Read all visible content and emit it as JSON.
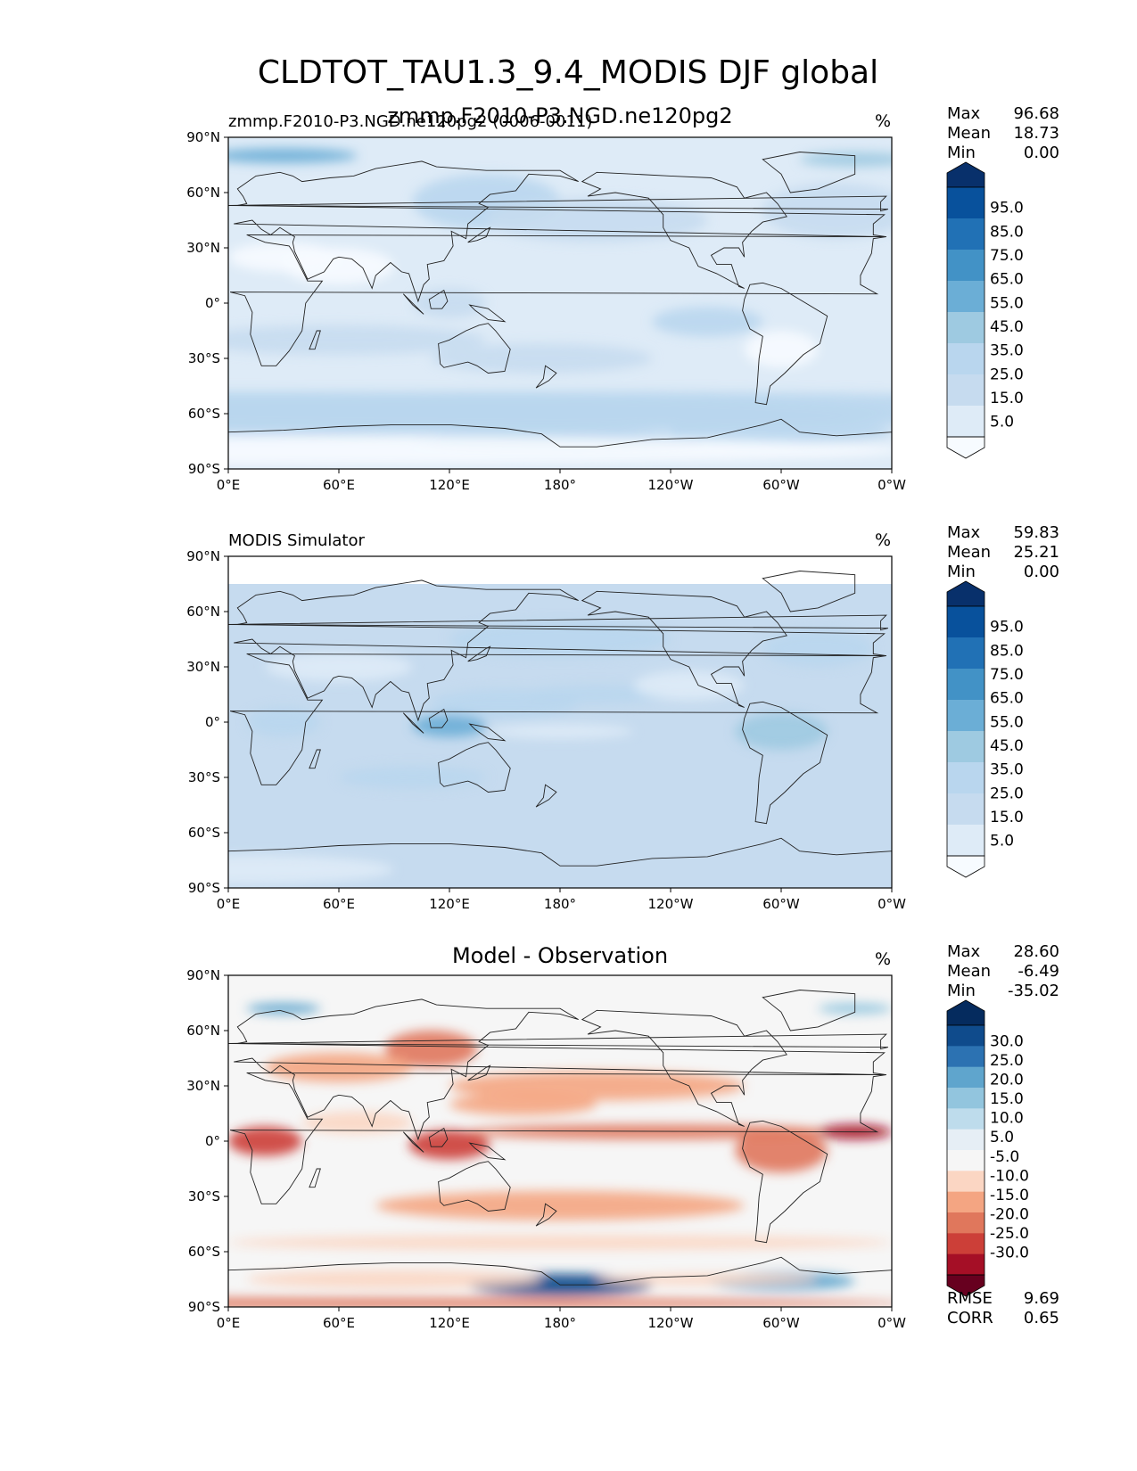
{
  "figure": {
    "title": "CLDTOT_TAU1.3_9.4_MODIS DJF global"
  },
  "axes": {
    "lat_ticks": [
      "90°N",
      "60°N",
      "30°N",
      "0°",
      "30°S",
      "60°S",
      "90°S"
    ],
    "lon_ticks": [
      "0°E",
      "60°E",
      "120°E",
      "180°",
      "120°W",
      "60°W",
      "0°W"
    ]
  },
  "panels": [
    {
      "left_label": "zmmp.F2010-P3.NGD.ne120pg2 (0006-0011)",
      "center_label": "zmmp.F2010-P3.NGD.ne120pg2",
      "unit": "%",
      "stats": {
        "max_label": "Max",
        "max": "96.68",
        "mean_label": "Mean",
        "mean": "18.73",
        "min_label": "Min",
        "min": "0.00"
      },
      "colorbar": {
        "labels": [
          "95.0",
          "85.0",
          "75.0",
          "65.0",
          "55.0",
          "45.0",
          "35.0",
          "25.0",
          "15.0",
          "5.0"
        ]
      }
    },
    {
      "left_label": "MODIS Simulator",
      "center_label": "",
      "unit": "%",
      "stats": {
        "max_label": "Max",
        "max": "59.83",
        "mean_label": "Mean",
        "mean": "25.21",
        "min_label": "Min",
        "min": "0.00"
      },
      "colorbar": {
        "labels": [
          "95.0",
          "85.0",
          "75.0",
          "65.0",
          "55.0",
          "45.0",
          "35.0",
          "25.0",
          "15.0",
          "5.0"
        ]
      }
    },
    {
      "left_label": "",
      "center_label": "Model - Observation",
      "unit": "%",
      "stats": {
        "max_label": "Max",
        "max": "28.60",
        "mean_label": "Mean",
        "mean": "-6.49",
        "min_label": "Min",
        "min": "-35.02"
      },
      "colorbar": {
        "labels": [
          "30.0",
          "25.0",
          "20.0",
          "15.0",
          "10.0",
          "5.0",
          "-5.0",
          "-10.0",
          "-15.0",
          "-20.0",
          "-25.0",
          "-30.0"
        ]
      },
      "metrics": {
        "rmse_label": "RMSE",
        "rmse": "9.69",
        "corr_label": "CORR",
        "corr": "0.65"
      }
    }
  ],
  "colors": {
    "blues": [
      "#f7fbff",
      "#deebf7",
      "#c6dbef",
      "#b9d6ee",
      "#9ecae1",
      "#6baed6",
      "#4292c6",
      "#2171b5",
      "#08519c",
      "#08306b"
    ],
    "diff": [
      "#67001f",
      "#a50f26",
      "#cc3f38",
      "#e0775c",
      "#f4a582",
      "#fbd6c3",
      "#f6f6f6",
      "#e6eef5",
      "#bedcec",
      "#92c5de",
      "#5fa5cd",
      "#2c72b2",
      "#0f4b8c",
      "#052b5e"
    ]
  },
  "chart_data": [
    {
      "type": "heatmap",
      "title": "zmmp.F2010-P3.NGD.ne120pg2",
      "unit": "%",
      "xlim": [
        0,
        360
      ],
      "ylim": [
        -90,
        90
      ],
      "stats": {
        "max": 96.68,
        "mean": 18.73,
        "min": 0.0
      },
      "colorbar_levels": [
        5,
        15,
        25,
        35,
        45,
        55,
        65,
        75,
        85,
        95
      ]
    },
    {
      "type": "heatmap",
      "title": "MODIS Simulator",
      "unit": "%",
      "xlim": [
        0,
        360
      ],
      "ylim": [
        -90,
        90
      ],
      "stats": {
        "max": 59.83,
        "mean": 25.21,
        "min": 0.0
      },
      "colorbar_levels": [
        5,
        15,
        25,
        35,
        45,
        55,
        65,
        75,
        85,
        95
      ]
    },
    {
      "type": "heatmap",
      "title": "Model - Observation",
      "unit": "%",
      "xlim": [
        0,
        360
      ],
      "ylim": [
        -90,
        90
      ],
      "stats": {
        "max": 28.6,
        "mean": -6.49,
        "min": -35.02
      },
      "rmse": 9.69,
      "corr": 0.65,
      "colorbar_levels": [
        -30,
        -25,
        -20,
        -15,
        -10,
        -5,
        5,
        10,
        15,
        20,
        25,
        30
      ]
    }
  ]
}
